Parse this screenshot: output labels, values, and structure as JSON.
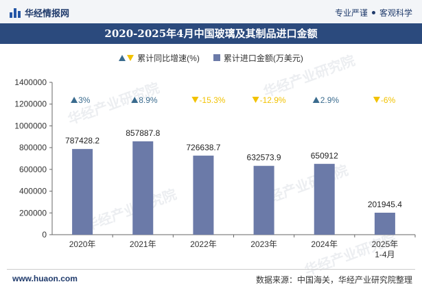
{
  "header": {
    "brand": "华经情报网",
    "tag_left": "专业严谨",
    "tag_right": "客观科学"
  },
  "chart_data": {
    "type": "bar",
    "title": "2020-2025年4月中国玻璃及其制品进口金额",
    "categories": [
      "2020年",
      "2021年",
      "2022年",
      "2023年",
      "2024年",
      "2025年\n1-4月"
    ],
    "series": [
      {
        "name": "累计进口金额(万美元)",
        "values": [
          787428.2,
          857887.8,
          726638.7,
          632573.9,
          650912,
          201945.4
        ]
      }
    ],
    "growth": {
      "name": "累计同比增速(%)",
      "values": [
        3,
        8.9,
        -15.3,
        -12.9,
        2.9,
        -6
      ],
      "labels": [
        "3%",
        "8.9%",
        "-15.3%",
        "-12.9%",
        "2.9%",
        "-6%"
      ]
    },
    "value_labels": [
      "787428.2",
      "857887.8",
      "726638.7",
      "632573.9",
      "650912",
      "201945.4"
    ],
    "ylim": [
      0,
      1400000
    ],
    "yticks": [
      "0",
      "200000",
      "400000",
      "600000",
      "800000",
      "1000000",
      "1200000",
      "1400000"
    ],
    "grid": false,
    "legend": "top-center",
    "colors": {
      "bar": "#6b7aa8",
      "up": "#3a6b8e",
      "down": "#f2c200"
    }
  },
  "watermark": "华经产业研究院",
  "footer": {
    "website": "www.huaon.com",
    "source": "数据来源：中国海关，华经产业研究院整理"
  }
}
